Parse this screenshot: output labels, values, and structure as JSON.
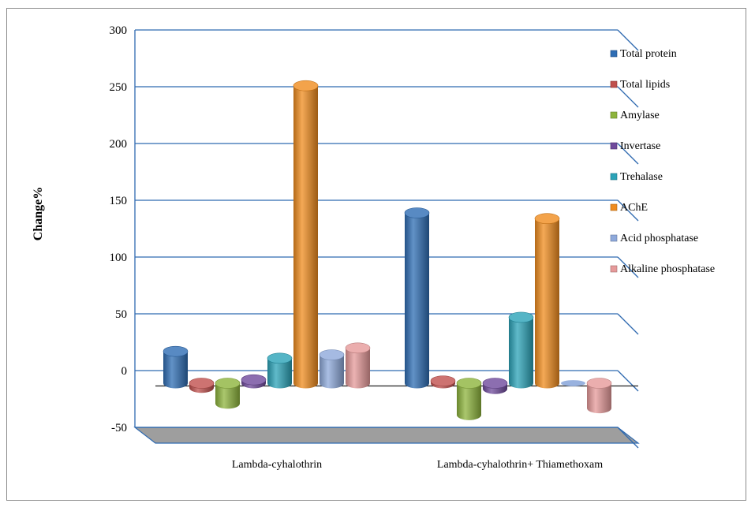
{
  "chart_data": {
    "type": "bar",
    "title": "",
    "xlabel": "",
    "ylabel": "Change%",
    "ylim": [
      -50,
      300
    ],
    "yticks": [
      -50,
      0,
      50,
      100,
      150,
      200,
      250,
      300
    ],
    "grid": true,
    "legend_position": "right",
    "categories": [
      "Lambda-cyhalothrin",
      "Lambda-cyhalothrin+ Thiamethoxam"
    ],
    "series": [
      {
        "name": "Total protein",
        "color": "#2e6db4",
        "values": [
          28,
          150
        ]
      },
      {
        "name": "Total lipids",
        "color": "#c0504d",
        "values": [
          -4,
          2
        ]
      },
      {
        "name": "Amylase",
        "color": "#8db43c",
        "values": [
          -18,
          -28
        ]
      },
      {
        "name": "Invertase",
        "color": "#6f4a9c",
        "values": [
          3,
          -5
        ]
      },
      {
        "name": "Trehalase",
        "color": "#2ba3b8",
        "values": [
          22,
          58
        ]
      },
      {
        "name": "AChE",
        "color": "#f08c1e",
        "values": [
          262,
          145
        ]
      },
      {
        "name": "Acid phosphatase",
        "color": "#8ea9db",
        "values": [
          25,
          0
        ]
      },
      {
        "name": "Alkaline phosphatase",
        "color": "#e69a9a",
        "values": [
          31,
          -22
        ]
      }
    ]
  }
}
